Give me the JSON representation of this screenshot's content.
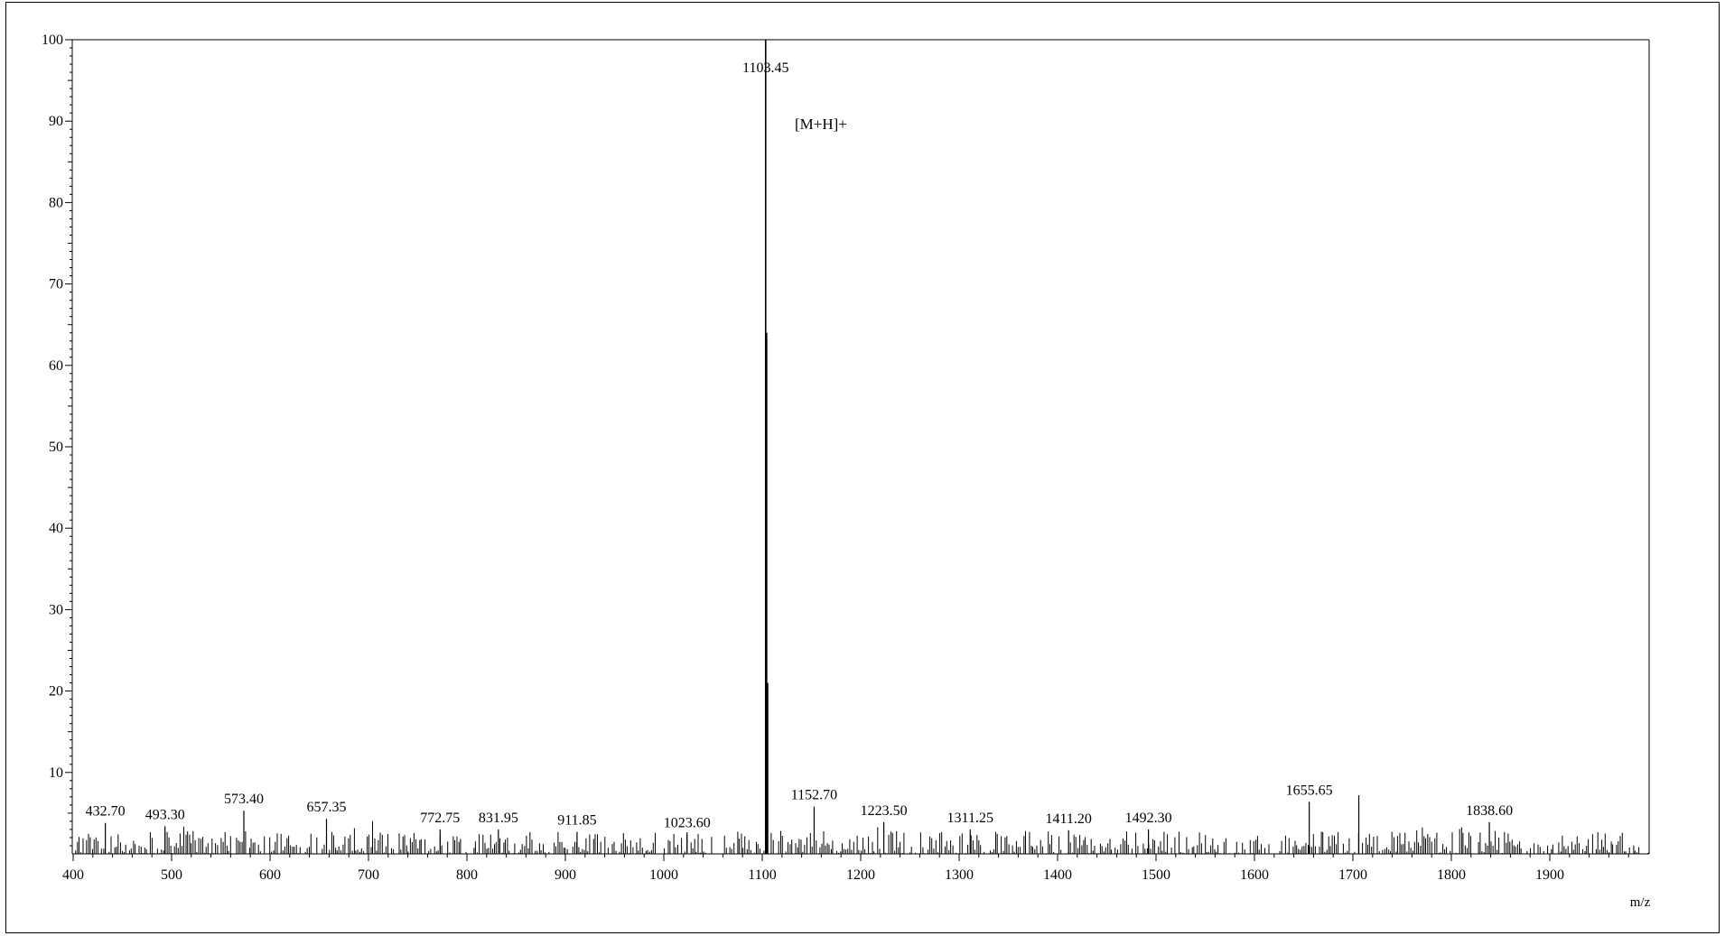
{
  "chart_data": {
    "type": "bar",
    "title": "",
    "xlabel": "m/z",
    "ylabel": "",
    "xlim": [
      395,
      2005
    ],
    "ylim": [
      0,
      100
    ],
    "x_ticks": [
      400,
      500,
      600,
      700,
      800,
      900,
      1000,
      1100,
      1200,
      1300,
      1400,
      1500,
      1600,
      1700,
      1800,
      1900
    ],
    "y_ticks": [
      10,
      20,
      30,
      40,
      50,
      60,
      70,
      80,
      90,
      100
    ],
    "grid": false,
    "legend": "none",
    "peaks": [
      {
        "x": 432.7,
        "y": 3.8,
        "label": "432.70"
      },
      {
        "x": 493.3,
        "y": 3.4,
        "label": "493.30"
      },
      {
        "x": 573.4,
        "y": 5.3,
        "label": "573.40"
      },
      {
        "x": 657.35,
        "y": 4.3,
        "label": "657.35"
      },
      {
        "x": 772.75,
        "y": 3.0,
        "label": "772.75"
      },
      {
        "x": 831.95,
        "y": 3.0,
        "label": "831.95"
      },
      {
        "x": 911.85,
        "y": 2.7,
        "label": "911.85"
      },
      {
        "x": 1023.6,
        "y": 2.4,
        "label": "1023.60"
      },
      {
        "x": 1103.45,
        "y": 100,
        "label": "1103.45"
      },
      {
        "x": 1104.45,
        "y": 64,
        "label": ""
      },
      {
        "x": 1105.45,
        "y": 21,
        "label": ""
      },
      {
        "x": 1152.7,
        "y": 5.8,
        "label": "1152.70"
      },
      {
        "x": 1223.5,
        "y": 3.9,
        "label": "1223.50"
      },
      {
        "x": 1311.25,
        "y": 3.0,
        "label": "1311.25"
      },
      {
        "x": 1411.2,
        "y": 2.9,
        "label": "1411.20"
      },
      {
        "x": 1492.3,
        "y": 3.0,
        "label": "1492.30"
      },
      {
        "x": 1655.65,
        "y": 6.4,
        "label": "1655.65"
      },
      {
        "x": 1706.0,
        "y": 7.2,
        "label": ""
      },
      {
        "x": 1838.6,
        "y": 3.9,
        "label": "1838.60"
      }
    ],
    "annotations": [
      {
        "text": "[M+H]+",
        "x": 1133,
        "y": 89
      }
    ],
    "noise": {
      "x_start": 402,
      "x_end": 2000,
      "step": 1.9,
      "max_y": 2.8
    }
  }
}
